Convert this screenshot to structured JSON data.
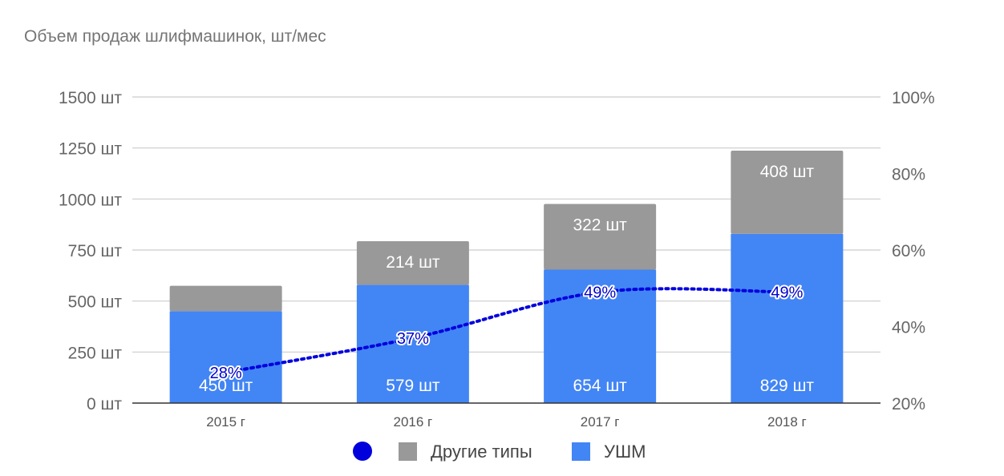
{
  "chart_data": {
    "type": "bar",
    "stacked": true,
    "title": "Объем продаж шлифмашинок, шт/мес",
    "categories": [
      "2015 г",
      "2016 г",
      "2017 г",
      "2018 г"
    ],
    "y_ticks": [
      "0 шт",
      "250 шт",
      "500 шт",
      "750 шт",
      "1000 шт",
      "1250 шт",
      "1500 шт"
    ],
    "y2_ticks": [
      "20%",
      "40%",
      "60%",
      "80%",
      "100%"
    ],
    "ylim": [
      0,
      1500
    ],
    "y2lim": [
      20,
      100
    ],
    "grid": true,
    "legend_position": "bottom",
    "series": [
      {
        "name": "УШМ",
        "color": "#4285f4",
        "values": [
          450,
          579,
          654,
          829
        ],
        "labels": [
          "450 шт",
          "579 шт",
          "654 шт",
          "829 шт"
        ]
      },
      {
        "name": "Другие типы",
        "color": "#999999",
        "values": [
          125,
          214,
          322,
          408
        ],
        "labels": [
          "",
          "214 шт",
          "322 шт",
          "408 шт"
        ]
      }
    ],
    "line_series": {
      "color": "#0000dd",
      "axis": "right",
      "values": [
        28,
        37,
        49,
        49
      ],
      "labels": [
        "28%",
        "37%",
        "49%",
        "49%"
      ]
    },
    "legend": [
      {
        "name": "",
        "color": "#0000dd",
        "shape": "circle"
      },
      {
        "name": "Другие типы",
        "color": "#999999",
        "shape": "square"
      },
      {
        "name": "УШМ",
        "color": "#4285f4",
        "shape": "square"
      }
    ]
  }
}
